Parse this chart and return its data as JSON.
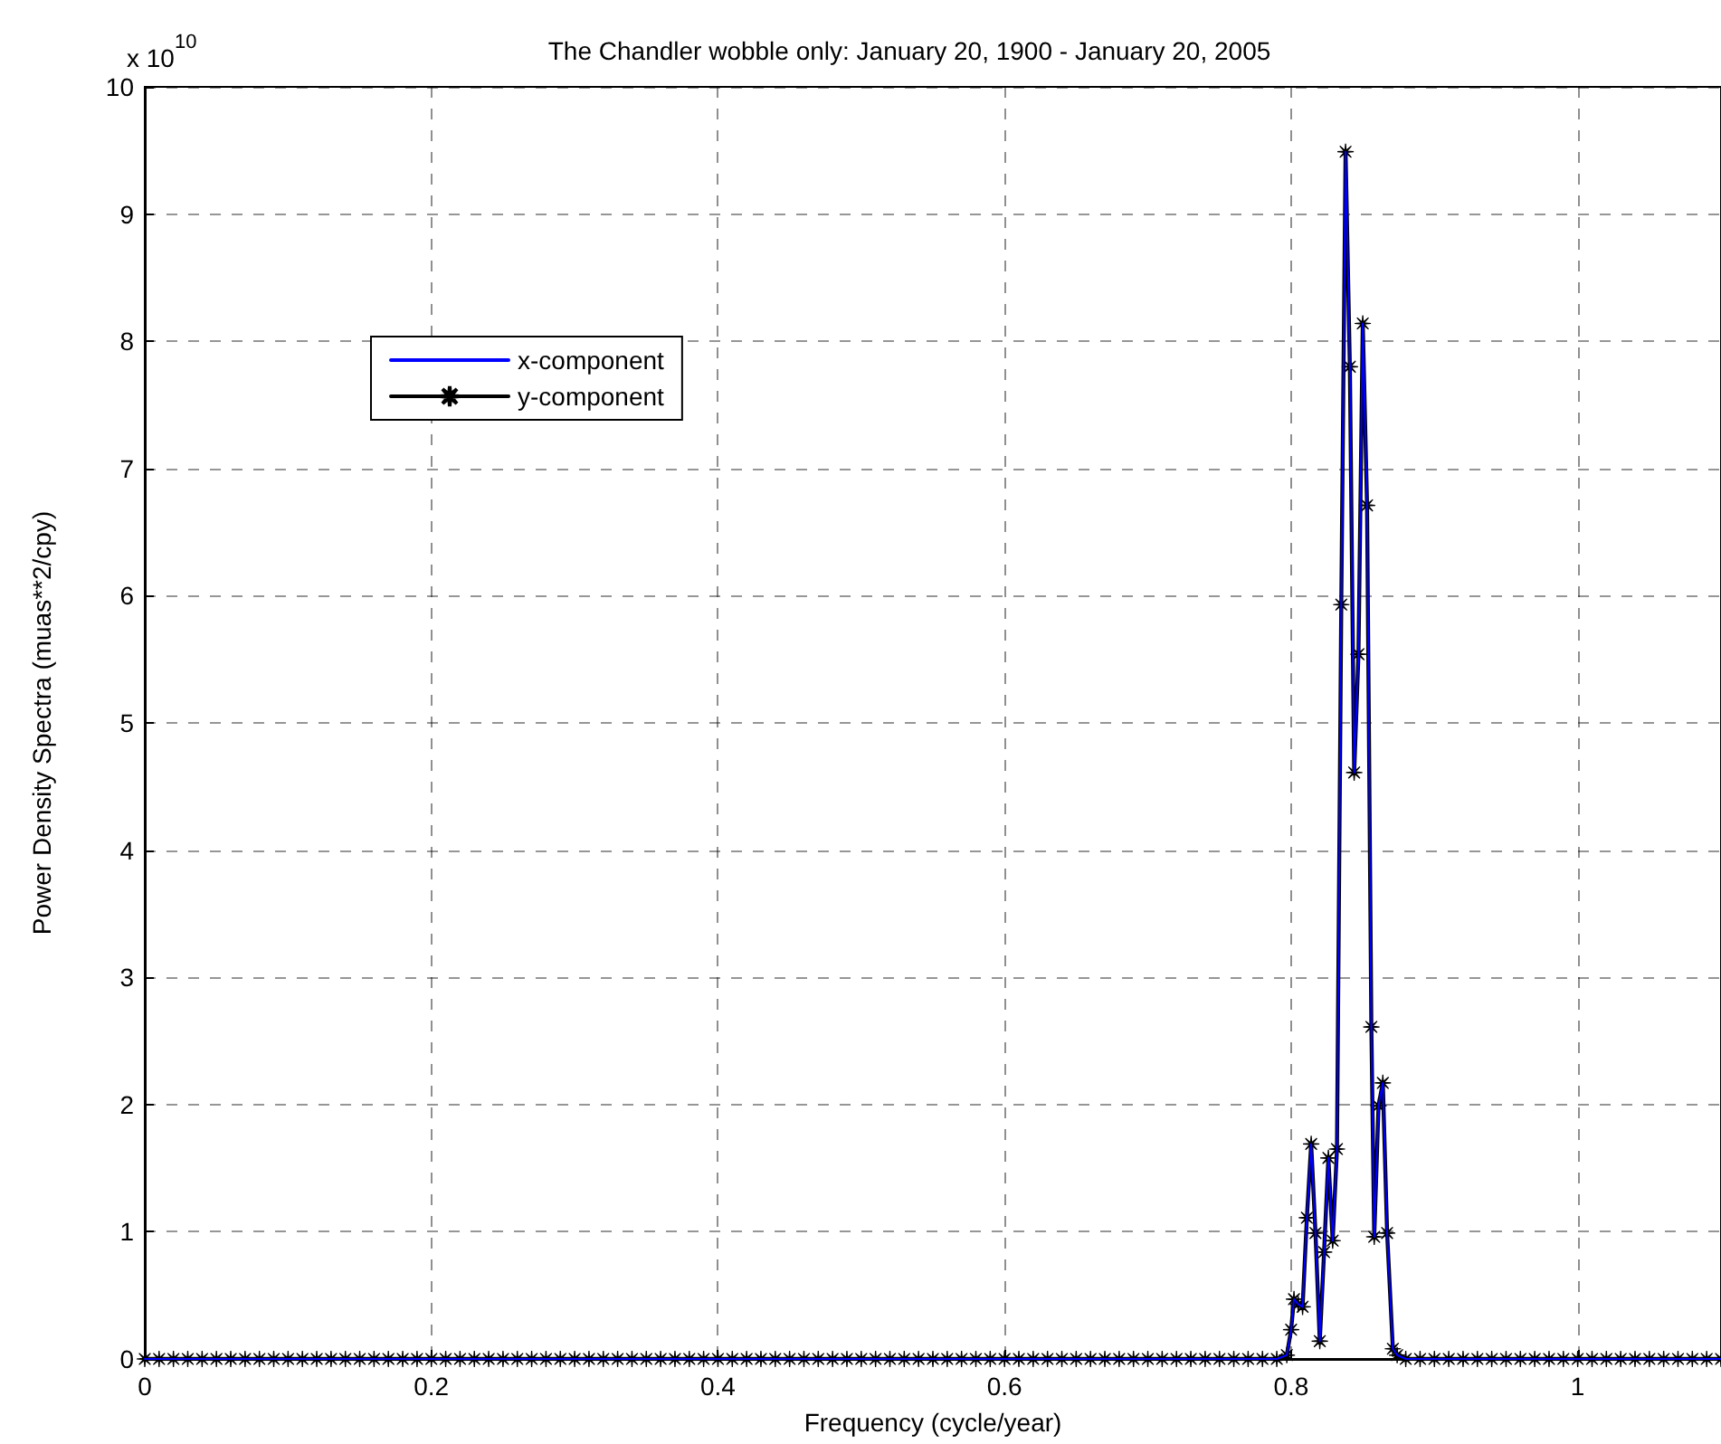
{
  "chart_data": {
    "type": "line",
    "title": "The Chandler wobble only: January 20, 1900 - January 20, 2005",
    "xlabel": "Frequency (cycle/year)",
    "ylabel": "Power Density Spectra (muas**2/cpy)",
    "annotations": [
      "x 10$^{10}$"
    ],
    "xlim": [
      0,
      1.1
    ],
    "xticks": [
      0,
      0.2,
      0.4,
      0.6,
      0.8,
      1
    ],
    "ylim": [
      0,
      10
    ],
    "yticks": [
      0,
      1,
      2,
      3,
      4,
      5,
      6,
      7,
      8,
      9,
      10
    ],
    "grid": true,
    "legend": "top left",
    "line_style": "solid",
    "x": [
      0,
      0.01,
      0.02,
      0.03,
      0.04,
      0.05,
      0.06,
      0.07,
      0.08,
      0.09,
      0.1,
      0.11,
      0.12,
      0.13,
      0.14,
      0.15,
      0.16,
      0.17,
      0.18,
      0.19,
      0.2,
      0.21,
      0.22,
      0.23,
      0.24,
      0.25,
      0.26,
      0.27,
      0.28,
      0.29,
      0.3,
      0.31,
      0.32,
      0.33,
      0.34,
      0.35,
      0.36,
      0.37,
      0.38,
      0.39,
      0.4,
      0.41,
      0.42,
      0.43,
      0.44,
      0.45,
      0.46,
      0.47,
      0.48,
      0.49,
      0.5,
      0.51,
      0.52,
      0.53,
      0.54,
      0.55,
      0.56,
      0.57,
      0.58,
      0.59,
      0.6,
      0.61,
      0.62,
      0.63,
      0.64,
      0.65,
      0.66,
      0.67,
      0.68,
      0.69,
      0.7,
      0.71,
      0.72,
      0.73,
      0.74,
      0.75,
      0.76,
      0.77,
      0.78,
      0.79,
      0.797,
      0.8,
      0.802,
      0.805,
      0.808,
      0.811,
      0.814,
      0.817,
      0.82,
      0.823,
      0.826,
      0.829,
      0.832,
      0.835,
      0.838,
      0.841,
      0.844,
      0.847,
      0.85,
      0.853,
      0.856,
      0.858,
      0.861,
      0.864,
      0.867,
      0.871,
      0.874,
      0.88,
      0.89,
      0.9,
      0.91,
      0.92,
      0.93,
      0.94,
      0.95,
      0.96,
      0.97,
      0.98,
      0.99,
      1,
      1.01,
      1.02,
      1.03,
      1.04,
      1.05,
      1.06,
      1.07,
      1.08,
      1.09,
      1.1
    ],
    "series": [
      {
        "name": "x-component",
        "color": "#0000ff",
        "marker": "none",
        "values": [
          0,
          0,
          0,
          0,
          0,
          0,
          0,
          0,
          0,
          0,
          0,
          0,
          0,
          0,
          0,
          0,
          0,
          0,
          0,
          0,
          0,
          0,
          0,
          0,
          0,
          0,
          0,
          0,
          0,
          0,
          0,
          0,
          0,
          0,
          0,
          0,
          0,
          0,
          0,
          0,
          0,
          0,
          0,
          0,
          0,
          0,
          0,
          0,
          0,
          0,
          0,
          0,
          0,
          0,
          0,
          0,
          0,
          0,
          0,
          0,
          0,
          0,
          0,
          0,
          0,
          0,
          0,
          0,
          0,
          0,
          0,
          0,
          0,
          0,
          0,
          0,
          0,
          0,
          0,
          0,
          0.03,
          0.23,
          0.47,
          0.43,
          0.41,
          1.11,
          1.69,
          0.99,
          0.14,
          0.84,
          1.58,
          0.93,
          1.65,
          5.93,
          9.49,
          7.8,
          4.61,
          5.54,
          8.14,
          6.71,
          2.61,
          0.96,
          1.99,
          2.17,
          0.99,
          0.08,
          0.03,
          0,
          0,
          0,
          0,
          0,
          0,
          0,
          0,
          0,
          0,
          0,
          0,
          0,
          0,
          0,
          0,
          0,
          0,
          0,
          0,
          0,
          0,
          0
        ]
      },
      {
        "name": "y-component",
        "color": "#000000",
        "marker": "star",
        "values": [
          0,
          0,
          0,
          0,
          0,
          0,
          0,
          0,
          0,
          0,
          0,
          0,
          0,
          0,
          0,
          0,
          0,
          0,
          0,
          0,
          0,
          0,
          0,
          0,
          0,
          0,
          0,
          0,
          0,
          0,
          0,
          0,
          0,
          0,
          0,
          0,
          0,
          0,
          0,
          0,
          0,
          0,
          0,
          0,
          0,
          0,
          0,
          0,
          0,
          0,
          0,
          0,
          0,
          0,
          0,
          0,
          0,
          0,
          0,
          0,
          0,
          0,
          0,
          0,
          0,
          0,
          0,
          0,
          0,
          0,
          0,
          0,
          0,
          0,
          0,
          0,
          0,
          0,
          0,
          0,
          0.03,
          0.23,
          0.47,
          0.43,
          0.41,
          1.11,
          1.69,
          0.99,
          0.14,
          0.84,
          1.58,
          0.93,
          1.65,
          5.93,
          9.49,
          7.8,
          4.61,
          5.54,
          8.14,
          6.71,
          2.61,
          0.96,
          1.99,
          2.17,
          0.99,
          0.08,
          0.03,
          0,
          0,
          0,
          0,
          0,
          0,
          0,
          0,
          0,
          0,
          0,
          0,
          0,
          0,
          0,
          0,
          0,
          0,
          0,
          0,
          0,
          0,
          0
        ]
      }
    ]
  }
}
